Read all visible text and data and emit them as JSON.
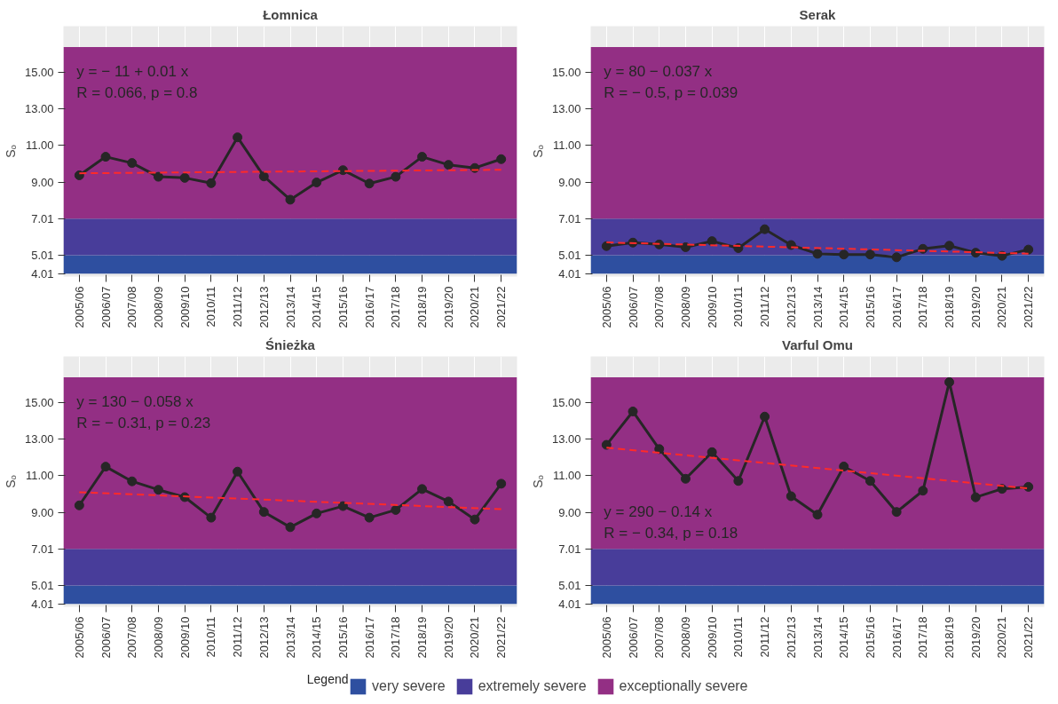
{
  "chart_data": [
    {
      "type": "line",
      "title": "Łomnica",
      "ylabel": "Sₒ",
      "categories": [
        "2005/06",
        "2006/07",
        "2007/08",
        "2008/09",
        "2009/10",
        "2010/11",
        "2011/12",
        "2012/13",
        "2013/14",
        "2014/15",
        "2015/16",
        "2016/17",
        "2017/18",
        "2018/19",
        "2019/20",
        "2020/21",
        "2021/22"
      ],
      "series": [
        {
          "color": "#262626",
          "values": [
            9.37,
            10.38,
            10.04,
            9.29,
            9.23,
            8.94,
            11.44,
            9.31,
            8.04,
            8.98,
            9.65,
            8.92,
            9.29,
            10.38,
            9.94,
            9.77,
            10.25
          ]
        },
        {
          "type": "line",
          "color": "#ff2a2a",
          "line_style": "dashed",
          "marker": "none",
          "x": [
            "2005/06",
            "2021/22"
          ],
          "values": [
            9.48,
            9.67
          ]
        }
      ],
      "marker": "circle",
      "ylim": [
        3.85,
        17.5
      ],
      "yticks": [
        4.01,
        5.01,
        7.01,
        {
          "value": 9,
          "label": "9.00"
        },
        {
          "value": 11,
          "label": "11.00"
        },
        {
          "value": 13,
          "label": "13.00"
        },
        {
          "value": 15,
          "label": "15.00"
        }
      ],
      "grid": "x",
      "bands": [
        {
          "axis": "y",
          "from": 4.01,
          "to": 5.01,
          "color": "#2e4fa0"
        },
        {
          "axis": "y",
          "from": 5.01,
          "to": 7.01,
          "color": "#483d9a"
        },
        {
          "axis": "y",
          "from": 7.01,
          "to": 16.36,
          "color": "#932f84"
        }
      ],
      "annotations": [
        "y = − 11 + 0.01 x",
        "R = 0.066, p = 0.8"
      ]
    },
    {
      "type": "line",
      "title": "Serak",
      "ylabel": "Sₒ",
      "categories": [
        "2005/06",
        "2006/07",
        "2007/08",
        "2008/09",
        "2009/10",
        "2010/11",
        "2011/12",
        "2012/13",
        "2013/14",
        "2014/15",
        "2015/16",
        "2016/17",
        "2017/18",
        "2018/19",
        "2019/20",
        "2020/21",
        "2021/22"
      ],
      "series": [
        {
          "color": "#262626",
          "values": [
            5.51,
            5.7,
            5.6,
            5.45,
            5.78,
            5.4,
            6.43,
            5.57,
            5.09,
            5.05,
            5.05,
            4.9,
            5.36,
            5.53,
            5.15,
            4.98,
            5.32
          ]
        },
        {
          "type": "line",
          "color": "#ff2a2a",
          "line_style": "dashed",
          "marker": "none",
          "x": [
            "2005/06",
            "2021/22"
          ],
          "values": [
            5.71,
            5.1
          ]
        }
      ],
      "marker": "circle",
      "ylim": [
        3.85,
        17.5
      ],
      "yticks": [
        4.01,
        5.01,
        7.01,
        {
          "value": 9,
          "label": "9.00"
        },
        {
          "value": 11,
          "label": "11.00"
        },
        {
          "value": 13,
          "label": "13.00"
        },
        {
          "value": 15,
          "label": "15.00"
        }
      ],
      "grid": "x",
      "bands": [
        {
          "axis": "y",
          "from": 4.01,
          "to": 5.01,
          "color": "#2e4fa0"
        },
        {
          "axis": "y",
          "from": 5.01,
          "to": 7.01,
          "color": "#483d9a"
        },
        {
          "axis": "y",
          "from": 7.01,
          "to": 16.36,
          "color": "#932f84"
        }
      ],
      "annotations": [
        "y = 80 − 0.037 x",
        "R = − 0.5, p = 0.039"
      ]
    },
    {
      "type": "line",
      "title": "Śnieżka",
      "ylabel": "Sₒ",
      "categories": [
        "2005/06",
        "2006/07",
        "2007/08",
        "2008/09",
        "2009/10",
        "2010/11",
        "2011/12",
        "2012/13",
        "2013/14",
        "2014/15",
        "2015/16",
        "2016/17",
        "2017/18",
        "2018/19",
        "2019/20",
        "2020/21",
        "2021/22"
      ],
      "series": [
        {
          "color": "#262626",
          "values": [
            9.38,
            11.49,
            10.69,
            10.23,
            9.83,
            8.71,
            11.22,
            9.02,
            8.19,
            8.94,
            9.34,
            8.71,
            9.13,
            10.27,
            9.59,
            8.61,
            10.56
          ]
        },
        {
          "type": "line",
          "color": "#ff2a2a",
          "line_style": "dashed",
          "marker": "none",
          "x": [
            "2005/06",
            "2021/22"
          ],
          "values": [
            10.1,
            9.17
          ]
        }
      ],
      "marker": "circle",
      "ylim": [
        3.85,
        17.5
      ],
      "yticks": [
        4.01,
        5.01,
        7.01,
        {
          "value": 9,
          "label": "9.00"
        },
        {
          "value": 11,
          "label": "11.00"
        },
        {
          "value": 13,
          "label": "13.00"
        },
        {
          "value": 15,
          "label": "15.00"
        }
      ],
      "grid": "x",
      "bands": [
        {
          "axis": "y",
          "from": 4.01,
          "to": 5.01,
          "color": "#2e4fa0"
        },
        {
          "axis": "y",
          "from": 5.01,
          "to": 7.01,
          "color": "#483d9a"
        },
        {
          "axis": "y",
          "from": 7.01,
          "to": 16.36,
          "color": "#932f84"
        }
      ],
      "annotations": [
        "y = 130 − 0.058 x",
        "R = − 0.31, p = 0.23"
      ]
    },
    {
      "type": "line",
      "title": "Varful Omu",
      "ylabel": "Sₒ",
      "categories": [
        "2005/06",
        "2006/07",
        "2007/08",
        "2008/09",
        "2009/10",
        "2010/11",
        "2011/12",
        "2012/13",
        "2013/14",
        "2014/15",
        "2015/16",
        "2016/17",
        "2017/18",
        "2018/19",
        "2019/20",
        "2020/21",
        "2021/22"
      ],
      "series": [
        {
          "color": "#262626",
          "values": [
            12.68,
            14.5,
            12.45,
            10.83,
            12.28,
            10.71,
            14.22,
            9.88,
            8.87,
            11.5,
            10.71,
            9.02,
            10.18,
            16.1,
            9.82,
            10.28,
            10.39
          ]
        },
        {
          "type": "line",
          "color": "#ff2a2a",
          "line_style": "dashed",
          "marker": "none",
          "x": [
            "2005/06",
            "2021/22"
          ],
          "values": [
            12.53,
            10.3
          ]
        }
      ],
      "marker": "circle",
      "ylim": [
        3.85,
        17.5
      ],
      "yticks": [
        4.01,
        5.01,
        7.01,
        {
          "value": 9,
          "label": "9.00"
        },
        {
          "value": 11,
          "label": "11.00"
        },
        {
          "value": 13,
          "label": "13.00"
        },
        {
          "value": 15,
          "label": "15.00"
        }
      ],
      "grid": "x",
      "bands": [
        {
          "axis": "y",
          "from": 4.01,
          "to": 5.01,
          "color": "#2e4fa0",
          "label": "very severe"
        },
        {
          "axis": "y",
          "from": 5.01,
          "to": 7.01,
          "color": "#483d9a",
          "label": "extremely severe"
        },
        {
          "axis": "y",
          "from": 7.01,
          "to": 16.36,
          "color": "#932f84",
          "label": "exceptionally severe"
        }
      ],
      "legend": "bottom",
      "legend_title": "Legend",
      "annotations": [
        "y = 290 − 0.14 x",
        "R = − 0.34, p = 0.18"
      ]
    }
  ]
}
